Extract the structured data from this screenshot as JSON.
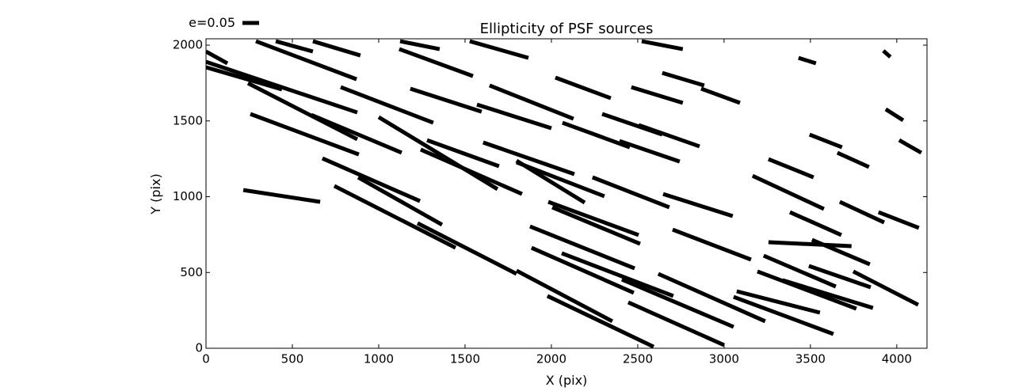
{
  "chart_data": {
    "type": "segments",
    "title": "Ellipticity of PSF sources",
    "x_label": "X (pix)",
    "y_label": "Y (pix)",
    "legend_label": "e=0.05",
    "color": "#000000",
    "grid": false,
    "xlim": [
      0,
      4175
    ],
    "ylim": [
      0,
      2042
    ],
    "xticks": [
      0,
      500,
      1000,
      1500,
      2000,
      2500,
      3000,
      3500,
      4000
    ],
    "yticks": [
      0,
      500,
      1000,
      1500,
      2000
    ],
    "x0": [
      216,
      743,
      674,
      881,
      1225,
      1798,
      1977,
      2445,
      1885,
      2060,
      2408,
      2619,
      1876,
      1982,
      2005,
      2238,
      2647,
      2702,
      3073,
      3055,
      3193,
      3229,
      3339,
      3491,
      3748,
      3257,
      3509,
      3381,
      3670,
      3894,
      3165,
      3257,
      3656,
      3495,
      4014,
      3936,
      3922,
      3431,
      257,
      610,
      1000,
      1243,
      1280,
      1605,
      1798,
      1798,
      1569,
      1642,
      2064,
      2294,
      2505,
      2394,
      1527,
      1119,
      780,
      1183,
      2023,
      2463,
      2642,
      2867,
      0,
      0,
      243,
      0,
      289,
      619,
      1124,
      2523,
      404
    ],
    "y0": [
      1044,
      1071,
      1253,
      1128,
      825,
      512,
      345,
      303,
      663,
      627,
      454,
      491,
      804,
      966,
      930,
      1128,
      1018,
      783,
      376,
      339,
      507,
      611,
      449,
      543,
      507,
      700,
      715,
      898,
      966,
      898,
      1138,
      1248,
      1290,
      1410,
      1373,
      1577,
      1963,
      1916,
      1546,
      1540,
      1525,
      1311,
      1373,
      1358,
      1227,
      1238,
      1608,
      1734,
      1488,
      1546,
      1473,
      1368,
      2026,
      1974,
      1723,
      1713,
      1786,
      1723,
      1817,
      1713,
      1890,
      1854,
      1749,
      1958,
      2026,
      2026,
      2026,
      2026,
      2026
    ],
    "x1": [
      661,
      1445,
      1239,
      1367,
      1798,
      2353,
      2592,
      3000,
      2477,
      2706,
      3055,
      3238,
      2482,
      2505,
      2514,
      2683,
      3050,
      3156,
      3555,
      3633,
      3766,
      3647,
      3862,
      3849,
      4124,
      3738,
      3844,
      3679,
      3927,
      4128,
      3578,
      3518,
      3839,
      3683,
      4142,
      4037,
      3963,
      3532,
      885,
      1133,
      1688,
      1830,
      1697,
      2133,
      2307,
      2193,
      2000,
      2128,
      2454,
      2642,
      2858,
      2743,
      1867,
      1546,
      1316,
      1596,
      2344,
      2761,
      2885,
      3092,
      876,
      440,
      876,
      124,
      872,
      894,
      1353,
      2761,
      619
    ],
    "y1": [
      966,
      663,
      971,
      815,
      491,
      178,
      10,
      21,
      366,
      345,
      141,
      178,
      527,
      747,
      689,
      930,
      872,
      585,
      235,
      94,
      261,
      407,
      266,
      402,
      287,
      674,
      554,
      747,
      830,
      794,
      919,
      1128,
      1196,
      1326,
      1290,
      1504,
      1922,
      1880,
      1279,
      1290,
      1050,
      1018,
      1201,
      1149,
      1003,
      961,
      1452,
      1514,
      1326,
      1410,
      1332,
      1232,
      1916,
      1796,
      1488,
      1561,
      1650,
      1619,
      1734,
      1619,
      1556,
      1708,
      1379,
      1880,
      1775,
      1932,
      1974,
      1974,
      1958
    ]
  }
}
